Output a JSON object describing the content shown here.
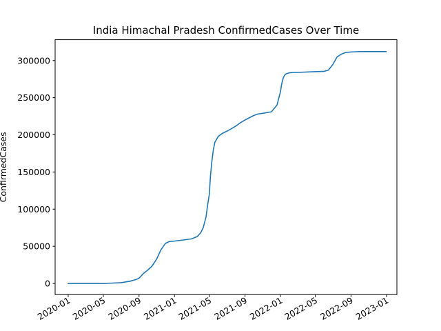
{
  "chart_data": {
    "type": "line",
    "title": "India Himachal Pradesh ConfirmedCases Over Time",
    "xlabel": "",
    "ylabel": "ConfirmedCases",
    "x_ticks": [
      "2020-01",
      "2020-05",
      "2020-09",
      "2021-01",
      "2021-05",
      "2021-09",
      "2022-01",
      "2022-05",
      "2022-09",
      "2023-01"
    ],
    "x_tick_dates": [
      "2020-01-01",
      "2020-05-01",
      "2020-09-01",
      "2021-01-01",
      "2021-05-01",
      "2021-09-01",
      "2022-01-01",
      "2022-05-01",
      "2022-09-01",
      "2023-01-01"
    ],
    "y_ticks": [
      0,
      50000,
      100000,
      150000,
      200000,
      250000,
      300000
    ],
    "y_tick_labels": [
      "0",
      "50000",
      "100000",
      "150000",
      "200000",
      "250000",
      "300000"
    ],
    "xlim": [
      "2019-11-17",
      "2023-02-06"
    ],
    "ylim": [
      -15000,
      328000
    ],
    "grid": false,
    "line_color": "#1f77b4",
    "series": [
      {
        "x": [
          "2020-01-01",
          "2020-03-01",
          "2020-05-01",
          "2020-06-01",
          "2020-07-01",
          "2020-08-01",
          "2020-08-20",
          "2020-09-01",
          "2020-09-15",
          "2020-10-01",
          "2020-10-15",
          "2020-11-01",
          "2020-11-15",
          "2020-12-01",
          "2020-12-15",
          "2021-01-01",
          "2021-02-01",
          "2021-03-01",
          "2021-03-20",
          "2021-04-01",
          "2021-04-10",
          "2021-04-20",
          "2021-04-25",
          "2021-05-01",
          "2021-05-05",
          "2021-05-10",
          "2021-05-15",
          "2021-05-20",
          "2021-06-01",
          "2021-06-15",
          "2021-07-01",
          "2021-07-15",
          "2021-08-01",
          "2021-08-15",
          "2021-09-01",
          "2021-10-01",
          "2021-10-15",
          "2021-11-01",
          "2021-12-01",
          "2021-12-20",
          "2022-01-01",
          "2022-01-05",
          "2022-01-10",
          "2022-01-15",
          "2022-01-20",
          "2022-02-01",
          "2022-02-15",
          "2022-03-01",
          "2022-04-01",
          "2022-05-01",
          "2022-06-01",
          "2022-06-15",
          "2022-07-01",
          "2022-07-15",
          "2022-08-01",
          "2022-08-15",
          "2022-09-01",
          "2022-10-01",
          "2022-11-01",
          "2022-12-01",
          "2022-12-31"
        ],
        "y": [
          0,
          0,
          0,
          500,
          1000,
          3000,
          5000,
          7000,
          13000,
          18000,
          23000,
          33000,
          45000,
          54000,
          56500,
          57000,
          58500,
          60000,
          63000,
          68000,
          75000,
          90000,
          105000,
          120000,
          145000,
          165000,
          180000,
          190000,
          198000,
          202000,
          205000,
          208000,
          212000,
          216000,
          220000,
          226000,
          228000,
          229000,
          231000,
          240000,
          258000,
          268000,
          276000,
          280000,
          282000,
          283500,
          284000,
          284000,
          284500,
          285000,
          285500,
          287000,
          295000,
          305000,
          309000,
          311000,
          311500,
          312000,
          312000,
          312000,
          312000
        ]
      }
    ]
  }
}
